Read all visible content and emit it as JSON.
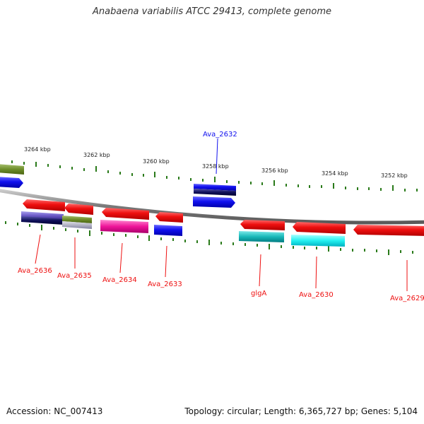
{
  "title": "Anabaena variabilis ATCC 29413, complete genome",
  "footer": {
    "accession": "Accession: NC_007413",
    "summary": "Topology: circular; Length: 6,365,727 bp; Genes: 5,104"
  },
  "scale": {
    "labels": [
      "3264 kbp",
      "3262 kbp",
      "3260 kbp",
      "3258 kbp",
      "3256 kbp",
      "3254 kbp",
      "3252 kbp"
    ]
  },
  "genes": [
    {
      "label": "Ava_2632",
      "strand": "forward",
      "color": "#1010ee"
    },
    {
      "label": "Ava_2636",
      "strand": "reverse",
      "color": "#ee1010"
    },
    {
      "label": "Ava_2635",
      "strand": "reverse",
      "color": "#ee1010"
    },
    {
      "label": "Ava_2634",
      "strand": "reverse",
      "color": "#ee1010"
    },
    {
      "label": "Ava_2633",
      "strand": "reverse",
      "color": "#ee1010"
    },
    {
      "label": "glgA",
      "strand": "reverse",
      "color": "#ee1010"
    },
    {
      "label": "Ava_2630",
      "strand": "reverse",
      "color": "#ee1010"
    },
    {
      "label": "Ava_2629",
      "strand": "reverse",
      "color": "#ee1010"
    }
  ],
  "colors": {
    "forward_gene": "#1010ee",
    "reverse_gene": "#ee1010",
    "backbone": "#888888",
    "tick": "#2a7a1a"
  }
}
